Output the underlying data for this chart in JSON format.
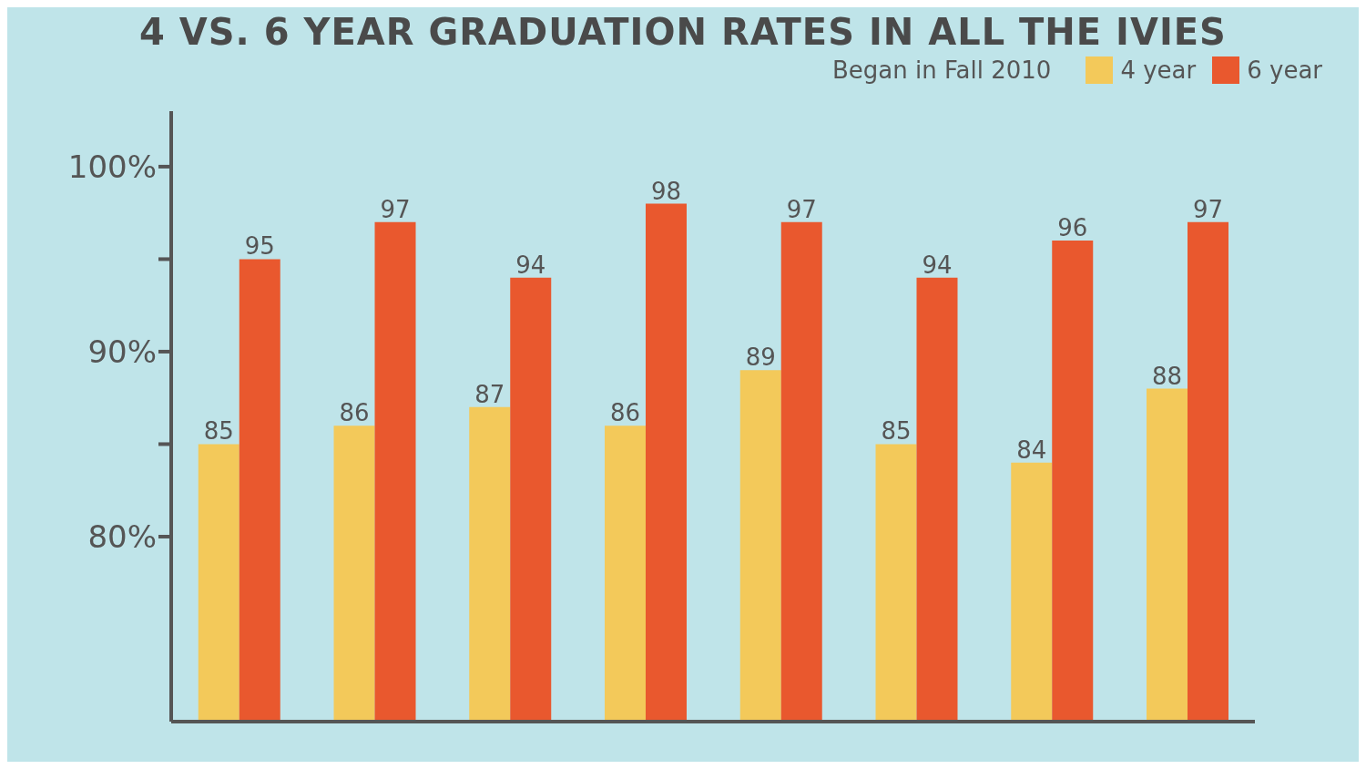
{
  "chart_data": {
    "type": "bar",
    "title": "4 VS. 6 YEAR GRADUATION RATES IN ALL THE IVIES",
    "legend_title": "Began in Fall 2010",
    "categories": [
      null,
      null,
      null,
      null,
      null,
      null,
      null,
      null
    ],
    "series": [
      {
        "name": "4 year",
        "color": "#f3c95a",
        "values": [
          85,
          86,
          87,
          86,
          89,
          85,
          84,
          88
        ]
      },
      {
        "name": "6 year",
        "color": "#e9582e",
        "values": [
          95,
          97,
          94,
          98,
          97,
          94,
          96,
          97
        ]
      }
    ],
    "ylim": [
      70,
      103
    ],
    "yticks": [
      {
        "value": 80,
        "label": "80%"
      },
      {
        "value": 85,
        "label": null
      },
      {
        "value": 90,
        "label": "90%"
      },
      {
        "value": 95,
        "label": null
      },
      {
        "value": 100,
        "label": "100%"
      }
    ],
    "data_labels": true,
    "grid": false,
    "legend": "top right"
  }
}
